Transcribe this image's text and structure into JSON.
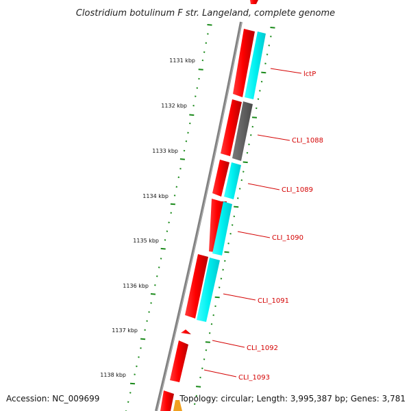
{
  "title": "Clostridium botulinum F str. Langeland, complete genome",
  "accession": "Accession: NC_009699",
  "topology": "Topology: circular; Length: 3,995,387 bp; Genes: 3,781",
  "ruler_labels": [
    "1131 kbp",
    "1132 kbp",
    "1133 kbp",
    "1134 kbp",
    "1135 kbp",
    "1136 kbp",
    "1137 kbp",
    "1138 kbp"
  ],
  "genes": [
    "lctP",
    "CLI_1088",
    "CLI_1089",
    "CLI_1090",
    "CLI_1091",
    "CLI_1092",
    "CLI_1093"
  ],
  "colors": {
    "cds_forward": "#ff0000",
    "cds_highlight": "#00f0f0",
    "cds_gray": "#606060",
    "backbone": "#808080",
    "tick": "#1a8a1a",
    "label": "#d40000",
    "partial": "#f0a020"
  }
}
